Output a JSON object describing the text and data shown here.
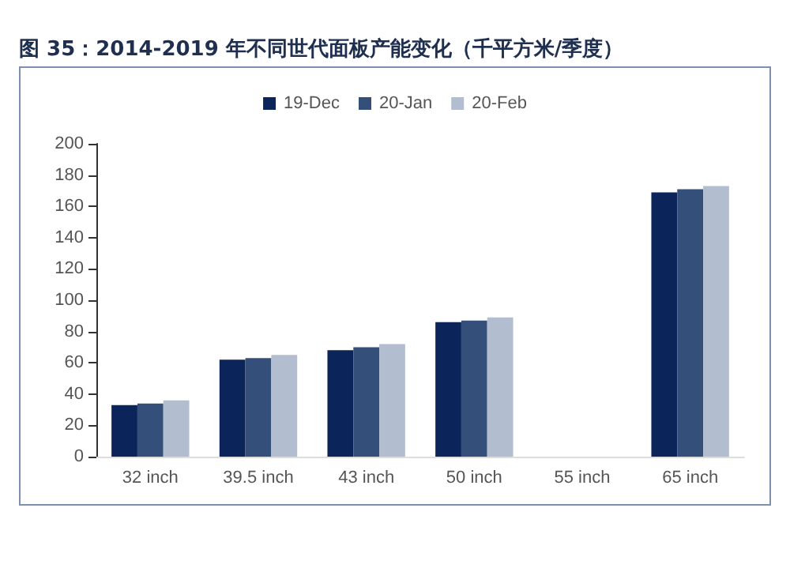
{
  "chart_data": {
    "type": "bar",
    "title": "图 35：2014-2019 年不同世代面板产能变化（千平方米/季度）",
    "categories": [
      "32 inch",
      "39.5 inch",
      "43 inch",
      "50 inch",
      "55 inch",
      "65 inch"
    ],
    "series": [
      {
        "name": "19-Dec",
        "color": "#0b2459",
        "values": [
          33,
          62,
          68,
          86,
          null,
          169
        ]
      },
      {
        "name": "20-Jan",
        "color": "#34507a",
        "values": [
          34,
          63,
          70,
          87,
          null,
          171
        ]
      },
      {
        "name": "20-Feb",
        "color": "#b2bdcf",
        "values": [
          36,
          65,
          72,
          89,
          null,
          173
        ]
      }
    ],
    "ylim": [
      0,
      200
    ],
    "yticks": [
      0,
      20,
      40,
      60,
      80,
      100,
      120,
      140,
      160,
      180,
      200
    ],
    "grid": false,
    "legend": "top"
  }
}
